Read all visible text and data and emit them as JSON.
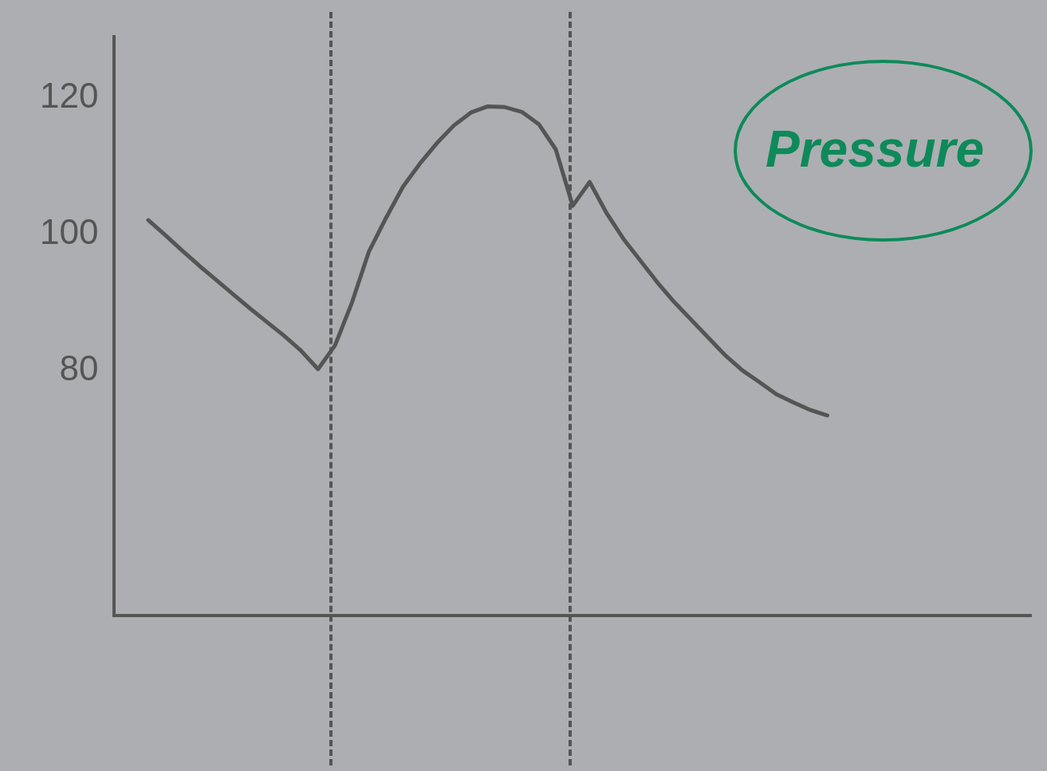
{
  "chart_data": {
    "type": "line",
    "title": "Pressure",
    "categories": [
      null,
      null,
      null,
      null,
      null,
      null,
      null,
      null,
      null,
      null,
      null,
      null,
      null,
      null,
      null,
      null,
      null,
      null,
      null,
      null,
      null,
      null,
      null,
      null,
      null,
      null,
      null,
      null,
      null,
      null,
      null,
      null,
      null,
      null,
      null,
      null,
      null,
      null,
      null,
      null,
      null,
      null,
      null,
      null,
      null,
      null,
      null,
      null,
      null,
      null,
      null,
      null,
      null,
      null,
      null
    ],
    "series": [
      {
        "color": "#555555",
        "values": [
          null,
          null,
          102.1,
          99.9,
          97.6,
          95.4,
          93.3,
          91.2,
          89.1,
          87.1,
          85.1,
          82.9,
          80.2,
          83.7,
          90.0,
          97.5,
          102.4,
          107.0,
          110.4,
          113.4,
          116.0,
          117.9,
          118.8,
          118.7,
          118.0,
          116.2,
          112.5,
          104.2,
          107.7,
          103.1,
          99.3,
          96.1,
          92.9,
          90.0,
          87.4,
          84.8,
          82.2,
          80.0,
          78.3,
          76.5,
          75.3,
          74.2,
          73.4,
          null,
          null,
          null,
          null,
          null,
          null,
          null,
          null,
          null,
          null,
          null,
          null
        ]
      }
    ],
    "ylim": [
      44,
      129
    ],
    "yticks": [
      80,
      100,
      120
    ],
    "tick_labels": "y",
    "grid": false,
    "legend": false,
    "marker": "none",
    "line_style": "solid"
  }
}
